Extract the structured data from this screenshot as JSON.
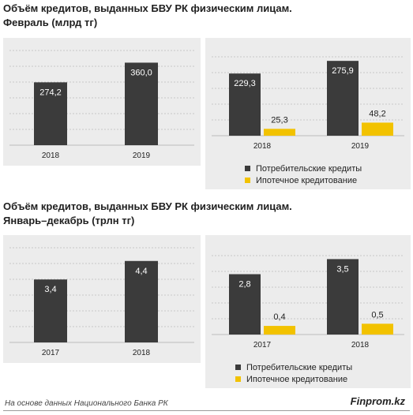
{
  "titles": {
    "top_line1": "Объём кредитов, выданных БВУ РК физическим лицам.",
    "top_line2": "Февраль (млрд тг)",
    "bottom_line1": "Объём кредитов, выданных БВУ РК физическим лицам.",
    "bottom_line2": "Январь–декабрь (трлн тг)"
  },
  "legend": {
    "consumer": "Потребительские кредиты",
    "mortgage": "Ипотечное кредитование"
  },
  "footer": {
    "source": "На основе данных Национального Банка РК",
    "brand": "Finprom.kz"
  },
  "colors": {
    "panel_bg": "#ececec",
    "dark_bar": "#3b3b3b",
    "yellow_bar": "#f2c200",
    "value_label_light": "#ffffff",
    "value_label_dark": "#222222"
  },
  "chart_data": [
    {
      "id": "feb-total",
      "type": "bar",
      "categories": [
        "2018",
        "2019"
      ],
      "series": [
        {
          "values": [
            274.2,
            360.0
          ],
          "labels": [
            "274,2",
            "360,0"
          ],
          "color": "#3b3b3b"
        }
      ],
      "ylim": [
        0,
        420
      ]
    },
    {
      "id": "feb-split",
      "type": "bar",
      "categories": [
        "2018",
        "2019"
      ],
      "series": [
        {
          "name": "Потребительские кредиты",
          "values": [
            229.3,
            275.9
          ],
          "labels": [
            "229,3",
            "275,9"
          ],
          "color": "#3b3b3b"
        },
        {
          "name": "Ипотечное кредитование",
          "values": [
            25.3,
            48.2
          ],
          "labels": [
            "25,3",
            "48,2"
          ],
          "color": "#f2c200"
        }
      ],
      "ylim": [
        0,
        320
      ]
    },
    {
      "id": "year-total",
      "type": "bar",
      "categories": [
        "2017",
        "2018"
      ],
      "series": [
        {
          "values": [
            3.4,
            4.4
          ],
          "labels": [
            "3,4",
            "4,4"
          ],
          "color": "#3b3b3b"
        }
      ],
      "ylim": [
        0,
        5.2
      ]
    },
    {
      "id": "year-split",
      "type": "bar",
      "categories": [
        "2017",
        "2018"
      ],
      "series": [
        {
          "name": "Потребительские кредиты",
          "values": [
            2.8,
            3.5
          ],
          "labels": [
            "2,8",
            "3,5"
          ],
          "color": "#3b3b3b"
        },
        {
          "name": "Ипотечное кредитование",
          "values": [
            0.4,
            0.5
          ],
          "labels": [
            "0,4",
            "0,5"
          ],
          "color": "#f2c200"
        }
      ],
      "ylim": [
        0,
        4.1
      ]
    }
  ]
}
